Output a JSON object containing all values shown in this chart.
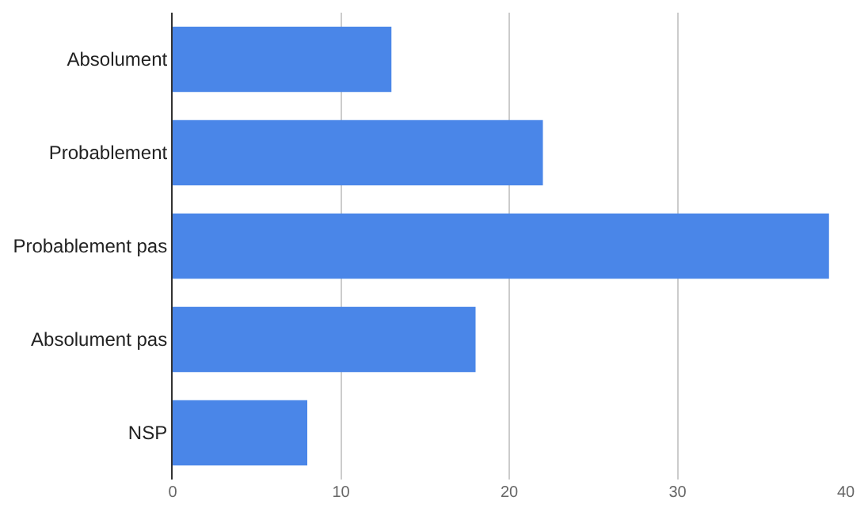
{
  "chart_data": {
    "type": "bar",
    "orientation": "horizontal",
    "categories": [
      "Absolument",
      "Probablement",
      "Probablement pas",
      "Absolument pas",
      "NSP"
    ],
    "values": [
      13,
      22,
      39,
      18,
      8
    ],
    "color": "#4a86e8",
    "xlim": [
      0,
      40
    ],
    "xticks": [
      0,
      10,
      20,
      30,
      40
    ],
    "grid": "x",
    "legend": false
  }
}
